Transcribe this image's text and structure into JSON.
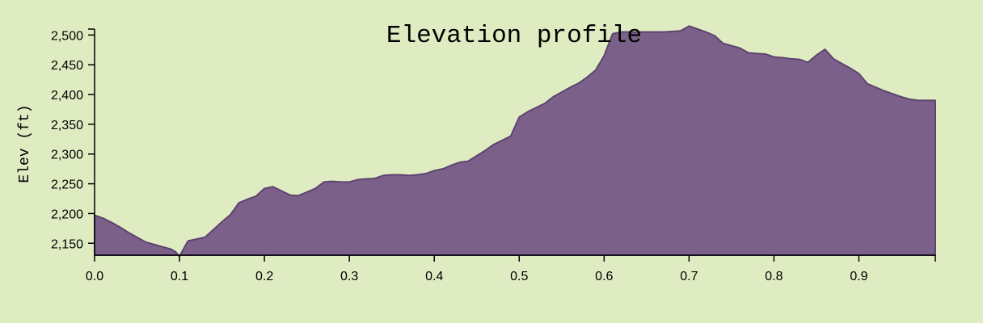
{
  "chart_data": {
    "type": "area",
    "title": "Elevation profile",
    "xlabel": "",
    "ylabel": "Elev (ft)",
    "xlim": [
      0,
      0.99
    ],
    "ylim": [
      2130,
      2510
    ],
    "grid": false,
    "x_ticks": [
      0.0,
      0.1,
      0.2,
      0.3,
      0.4,
      0.5,
      0.6,
      0.7,
      0.8,
      0.9
    ],
    "x_tick_labels": [
      "0.0",
      "0.1",
      "0.2",
      "0.3",
      "0.4",
      "0.5",
      "0.6",
      "0.7",
      "0.8",
      "0.9"
    ],
    "y_ticks": [
      2150,
      2200,
      2250,
      2300,
      2350,
      2400,
      2450,
      2500
    ],
    "y_tick_labels": [
      "2,150",
      "2,200",
      "2,250",
      "2,300",
      "2,350",
      "2,400",
      "2,450",
      "2,500"
    ],
    "colors": {
      "fill": "#7b6189",
      "stroke": "#5e4370",
      "background": "#dfecc2"
    },
    "x": [
      0.0,
      0.01,
      0.02,
      0.03,
      0.04,
      0.05,
      0.06,
      0.07,
      0.08,
      0.09,
      0.095,
      0.1,
      0.11,
      0.12,
      0.13,
      0.14,
      0.15,
      0.16,
      0.17,
      0.18,
      0.19,
      0.2,
      0.21,
      0.22,
      0.23,
      0.24,
      0.25,
      0.26,
      0.27,
      0.28,
      0.29,
      0.3,
      0.31,
      0.32,
      0.33,
      0.34,
      0.35,
      0.36,
      0.37,
      0.38,
      0.39,
      0.4,
      0.41,
      0.42,
      0.43,
      0.44,
      0.45,
      0.46,
      0.47,
      0.48,
      0.49,
      0.5,
      0.51,
      0.52,
      0.53,
      0.54,
      0.55,
      0.56,
      0.57,
      0.58,
      0.59,
      0.6,
      0.61,
      0.62,
      0.63,
      0.64,
      0.65,
      0.66,
      0.67,
      0.68,
      0.69,
      0.7,
      0.71,
      0.72,
      0.73,
      0.74,
      0.75,
      0.76,
      0.77,
      0.78,
      0.79,
      0.8,
      0.81,
      0.82,
      0.83,
      0.84,
      0.85,
      0.86,
      0.87,
      0.88,
      0.89,
      0.9,
      0.91,
      0.92,
      0.93,
      0.94,
      0.95,
      0.96,
      0.97,
      0.98,
      0.99
    ],
    "values": [
      2197,
      2192,
      2185,
      2177,
      2168,
      2160,
      2152,
      2148,
      2144,
      2140,
      2136,
      2128,
      2154,
      2157,
      2160,
      2173,
      2186,
      2198,
      2218,
      2224,
      2229,
      2242,
      2245,
      2238,
      2231,
      2230,
      2236,
      2242,
      2253,
      2254,
      2253,
      2253,
      2257,
      2258,
      2259,
      2264,
      2265,
      2265,
      2264,
      2265,
      2267,
      2272,
      2275,
      2281,
      2286,
      2288,
      2297,
      2306,
      2316,
      2323,
      2330,
      2362,
      2371,
      2378,
      2385,
      2396,
      2404,
      2412,
      2419,
      2429,
      2441,
      2465,
      2502,
      2505,
      2505,
      2505,
      2505,
      2505,
      2505,
      2506,
      2507,
      2515,
      2510,
      2505,
      2499,
      2486,
      2482,
      2478,
      2470,
      2469,
      2468,
      2463,
      2462,
      2460,
      2459,
      2454,
      2466,
      2476,
      2460,
      2452,
      2444,
      2435,
      2418,
      2412,
      2406,
      2401,
      2396,
      2392,
      2390,
      2390,
      2390
    ]
  }
}
